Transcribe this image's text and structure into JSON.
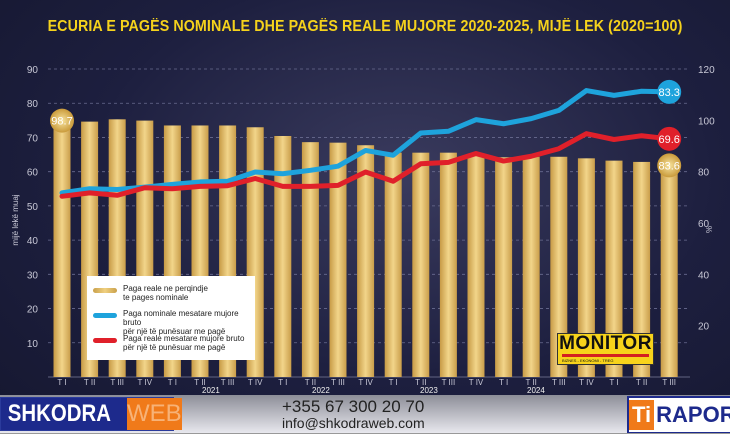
{
  "chart_data": {
    "type": "bar+line",
    "title": "ECURIA E PAGËS NOMINALE DHE PAGËS REALE MUJORE 2020-2025, MIJË LEK (2020=100)",
    "ylabel_left": "mijë lekë muaj",
    "ylabel_right": "%",
    "ylim_left": [
      0,
      90
    ],
    "ylim_right": [
      0,
      120
    ],
    "yticks_left": [
      10,
      20,
      30,
      40,
      50,
      60,
      70,
      80,
      90
    ],
    "yticks_right": [
      20,
      40,
      60,
      80,
      100,
      120
    ],
    "grid": true,
    "categories": [
      "T I",
      "T II",
      "T III",
      "T IV",
      "T I",
      "T II",
      "T III",
      "T IV",
      "T I",
      "T II",
      "T III",
      "T IV",
      "T I",
      "T II",
      "T III",
      "T IV",
      "T I",
      "T II",
      "T III",
      "T IV",
      "T I",
      "T II",
      "T III"
    ],
    "year_labels": [
      "2021",
      "2022",
      "2023",
      "2024"
    ],
    "series": [
      {
        "name": "Paga reale ne perqindje te pages nominale",
        "type": "bar",
        "axis": "right",
        "color": "#e9c46a",
        "values": [
          98.7,
          99.5,
          100.4,
          99.9,
          98.0,
          98.0,
          98.0,
          97.3,
          93.9,
          91.5,
          91.3,
          90.3,
          87.4,
          87.4,
          87.4,
          86.1,
          85.6,
          85.8,
          85.8,
          85.2,
          84.3,
          83.8,
          83.6
        ]
      },
      {
        "name": "Paga nominale mesatare mujore bruto për një të punësuar me pagë",
        "type": "line",
        "axis": "left",
        "color": "#1ea3dc",
        "values": [
          53.8,
          55.0,
          54.8,
          55.5,
          56.3,
          57.0,
          57.2,
          59.9,
          59.4,
          60.4,
          61.6,
          66.2,
          64.8,
          71.3,
          71.8,
          75.2,
          74.0,
          75.5,
          77.9,
          83.7,
          82.3,
          83.5,
          83.3
        ]
      },
      {
        "name": "Paga reale mesatare mujore bruto për një të punësuar me pagë",
        "type": "line",
        "axis": "left",
        "color": "#e0202a",
        "values": [
          52.8,
          53.8,
          53.1,
          55.3,
          55.0,
          55.7,
          55.9,
          58.0,
          55.7,
          55.7,
          56.0,
          59.9,
          57.2,
          62.3,
          62.7,
          65.3,
          63.1,
          64.5,
          66.7,
          71.1,
          69.4,
          70.5,
          69.6
        ]
      }
    ],
    "data_labels": {
      "first_bar": "98.7",
      "last_bar": "83.6",
      "last_blue": "83.3",
      "last_red": "69.6"
    },
    "legend_placement": "bottom-left"
  },
  "legend": [
    {
      "line1": "Paga reale ne perqindje",
      "line2": "te pages nominale"
    },
    {
      "line1": "Paga nominale mesatare mujore bruto",
      "line2": "për një të punësuar me pagë"
    },
    {
      "line1": "Paga reale mesatare mujore bruto",
      "line2": "për një të punësuar me pagë"
    }
  ],
  "watermark": {
    "name": "MONITOR",
    "tagline": "BIZNES - EKONOMI - TREG"
  },
  "banner": {
    "left_logo_a": "SHKODRA",
    "left_logo_b": "WEB",
    "phone": "+355 67 300 20 70",
    "email": "info@shkodraweb.com",
    "right_logo_a": "Ti",
    "right_logo_b": "RAPOR"
  }
}
